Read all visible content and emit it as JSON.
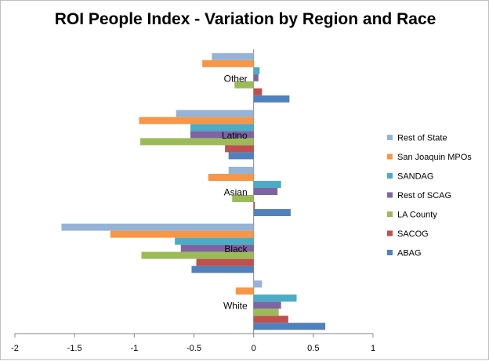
{
  "chart_data": {
    "type": "bar",
    "orientation": "horizontal",
    "title": "ROI People Index - Variation by Region and Race",
    "xlabel": "",
    "ylabel": "",
    "xlim": [
      -2,
      1
    ],
    "xticks": [
      "-2",
      "-1.5",
      "-1",
      "-0.5",
      "0",
      "0.5",
      "1"
    ],
    "xtick_values": [
      -2,
      -1.5,
      -1,
      -0.5,
      0,
      0.5,
      1
    ],
    "grid": false,
    "legend_position": "right",
    "categories": [
      "White",
      "Black",
      "Asian",
      "Latino",
      "Other"
    ],
    "series": [
      {
        "name": "ABAG",
        "color": "#4f81bd",
        "values": [
          0.6,
          -0.52,
          0.31,
          -0.21,
          0.3
        ]
      },
      {
        "name": "SACOG",
        "color": "#c0504d",
        "values": [
          0.29,
          -0.48,
          0.01,
          -0.24,
          0.07
        ]
      },
      {
        "name": "LA County",
        "color": "#9bbb59",
        "values": [
          0.21,
          -0.94,
          -0.18,
          -0.95,
          -0.16
        ]
      },
      {
        "name": "Rest of SCAG",
        "color": "#8064a2",
        "values": [
          0.23,
          -0.61,
          0.2,
          -0.53,
          0.04
        ]
      },
      {
        "name": "SANDAG",
        "color": "#4bacc6",
        "values": [
          0.36,
          -0.66,
          0.23,
          -0.53,
          0.05
        ]
      },
      {
        "name": "San Joaquin MPOs",
        "color": "#f79646",
        "values": [
          -0.15,
          -1.2,
          -0.38,
          -0.96,
          -0.43
        ]
      },
      {
        "name": "Rest of State",
        "color": "#95b3d7",
        "values": [
          0.07,
          -1.61,
          -0.21,
          -0.65,
          -0.35
        ]
      }
    ]
  }
}
